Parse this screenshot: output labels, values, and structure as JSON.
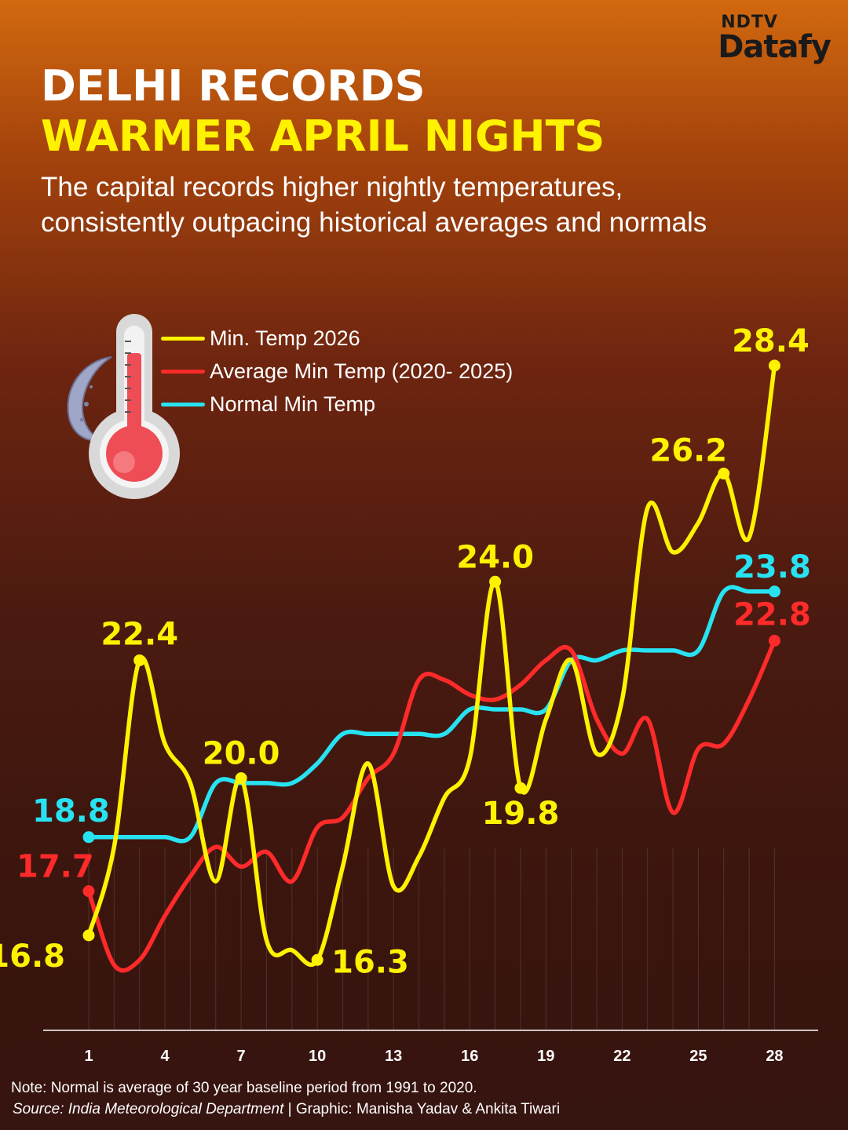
{
  "brand": {
    "top": "NDTV",
    "main": "Datafy"
  },
  "title_line1": "DELHI RECORDS",
  "title_line2": "WARMER APRIL NIGHTS",
  "subtitle": "The capital records higher nightly temperatures, consistently outpacing historical averages and normals",
  "footer": {
    "note": "Note: Normal is average of 30 year baseline period from 1991 to 2020.",
    "source_label": "Source: India Meteorological Department",
    "source_sep": " | ",
    "credit": "Graphic: Manisha Yadav & Ankita Tiwari"
  },
  "icons": [
    "thermometer-icon",
    "crescent-moon-icon"
  ],
  "chart_data": {
    "type": "line",
    "title": "",
    "xlabel": "",
    "ylabel": "",
    "x": [
      1,
      2,
      3,
      4,
      5,
      6,
      7,
      8,
      9,
      10,
      11,
      12,
      13,
      14,
      15,
      16,
      17,
      18,
      19,
      20,
      21,
      22,
      23,
      24,
      25,
      26,
      27,
      28
    ],
    "x_ticks": [
      "1",
      "4",
      "7",
      "10",
      "13",
      "16",
      "19",
      "22",
      "25",
      "28"
    ],
    "ylim": [
      15.5,
      29
    ],
    "grid": "vertical lines",
    "legend_position": "top-left",
    "series": [
      {
        "name": "Min. Temp 2026",
        "color": "#fff200",
        "values": [
          16.8,
          18.6,
          22.4,
          20.7,
          19.9,
          17.9,
          20.0,
          16.7,
          16.5,
          16.3,
          18.2,
          20.3,
          17.8,
          18.4,
          19.6,
          20.4,
          24.0,
          19.8,
          21.2,
          22.4,
          20.5,
          21.6,
          25.5,
          24.6,
          25.2,
          26.2,
          24.9,
          28.4
        ],
        "labels": [
          {
            "x": 1,
            "text": "16.8"
          },
          {
            "x": 3,
            "text": "22.4"
          },
          {
            "x": 7,
            "text": "20.0"
          },
          {
            "x": 10,
            "text": "16.3"
          },
          {
            "x": 17,
            "text": "24.0"
          },
          {
            "x": 18,
            "text": "19.8"
          },
          {
            "x": 26,
            "text": "26.2"
          },
          {
            "x": 28,
            "text": "28.4"
          }
        ]
      },
      {
        "name": "Average Min Temp (2020- 2025)",
        "color": "#ff2a2a",
        "values": [
          17.7,
          16.2,
          16.3,
          17.2,
          18.0,
          18.6,
          18.2,
          18.5,
          17.9,
          19.0,
          19.2,
          20.0,
          20.5,
          22.0,
          22.0,
          21.7,
          21.6,
          21.9,
          22.4,
          22.6,
          21.2,
          20.5,
          21.2,
          19.3,
          20.6,
          20.7,
          21.6,
          22.8
        ],
        "labels": [
          {
            "x": 1,
            "text": "17.7"
          },
          {
            "x": 28,
            "text": "22.8"
          }
        ]
      },
      {
        "name": "Normal Min Temp",
        "color": "#27e3f2",
        "values": [
          18.8,
          18.8,
          18.8,
          18.8,
          18.8,
          19.9,
          19.9,
          19.9,
          19.9,
          20.3,
          20.9,
          20.9,
          20.9,
          20.9,
          20.9,
          21.4,
          21.4,
          21.4,
          21.4,
          22.4,
          22.4,
          22.6,
          22.6,
          22.6,
          22.6,
          23.8,
          23.8,
          23.8
        ],
        "labels": [
          {
            "x": 1,
            "text": "18.8"
          },
          {
            "x": 28,
            "text": "23.8"
          }
        ]
      }
    ]
  }
}
